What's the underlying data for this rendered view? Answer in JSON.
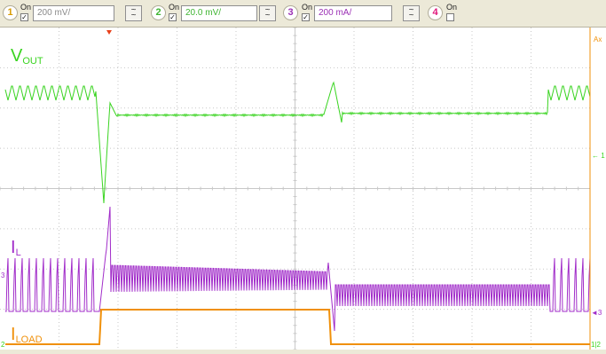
{
  "channels": [
    {
      "num": "1",
      "on_label": "On",
      "checked": true,
      "scale": "200 mV/",
      "color": "#e0a000",
      "coupling": "~"
    },
    {
      "num": "2",
      "on_label": "On",
      "checked": true,
      "scale": "20.0 mV/",
      "color": "#3fb532",
      "coupling": "~"
    },
    {
      "num": "3",
      "on_label": "On",
      "checked": true,
      "scale": "200 mA/",
      "color": "#9b2fb5",
      "coupling": "~"
    },
    {
      "num": "4",
      "on_label": "On",
      "checked": false,
      "color": "#e0157a"
    }
  ],
  "traces": {
    "vout": {
      "label_main": "V",
      "label_sub": "OUT",
      "color": "#3ad421"
    },
    "il": {
      "label_main": "I",
      "label_sub": "L",
      "color": "#a12cc9"
    },
    "iload": {
      "label_main": "I",
      "label_sub": "LOAD",
      "color": "#f0900a"
    }
  },
  "markers": {
    "top_right": "Ax",
    "ch2_arrow": "← 1",
    "ch3_left": "3",
    "ch3_right": "◄3",
    "ch1_left": "2",
    "ch1_right": "1|2"
  },
  "colors": {
    "grid": "#c8c8c8",
    "trigger": "#e8401a"
  }
}
